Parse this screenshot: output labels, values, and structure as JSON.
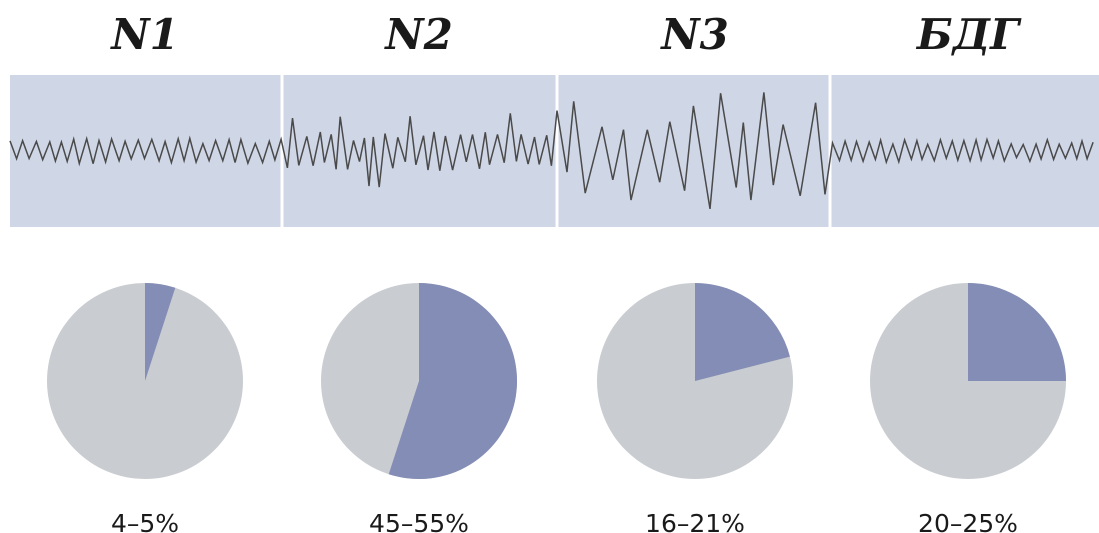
{
  "chart_data": [
    {
      "type": "pie",
      "title": "N1",
      "label": "4–5%",
      "slice_fraction": 0.05
    },
    {
      "type": "pie",
      "title": "N2",
      "label": "45–55%",
      "slice_fraction": 0.55
    },
    {
      "type": "pie",
      "title": "N3",
      "label": "16–21%",
      "slice_fraction": 0.21
    },
    {
      "type": "pie",
      "title": "БДГ",
      "label": "20–25%",
      "slice_fraction": 0.25
    }
  ],
  "colors": {
    "band": "#cfd6e6",
    "separator": "#ffffff",
    "trace": "#4a4a4a",
    "slice": "#848db5",
    "remainder": "#c9ccd0"
  }
}
